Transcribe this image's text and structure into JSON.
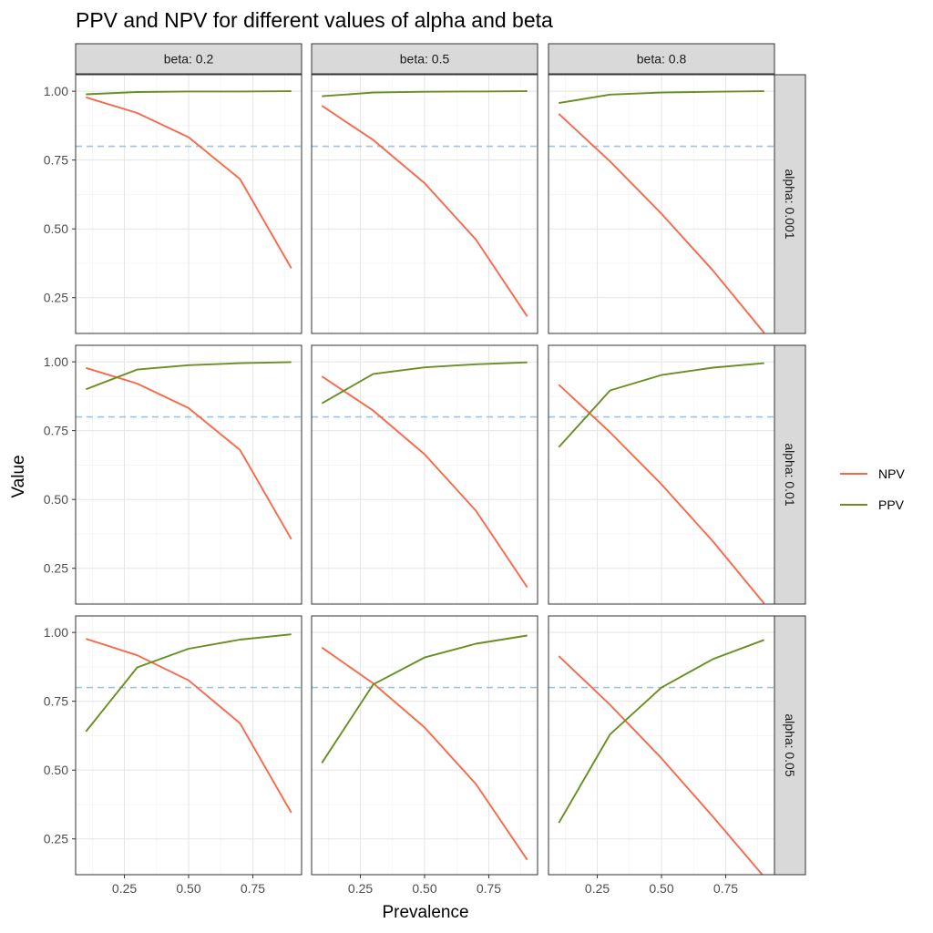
{
  "chart_data": {
    "type": "line",
    "title": "PPV and NPV for different values of alpha and beta",
    "xlabel": "Prevalence",
    "ylabel": "Value",
    "xlim": [
      0.06,
      0.94
    ],
    "ylim": [
      0.12,
      1.06
    ],
    "x_ticks": [
      0.25,
      0.5,
      0.75
    ],
    "x_tick_labels": [
      "0.25",
      "0.50",
      "0.75"
    ],
    "y_ticks": [
      0.25,
      0.5,
      0.75,
      1.0
    ],
    "y_tick_labels": [
      "0.25",
      "0.50",
      "0.75",
      "1.00"
    ],
    "grid": true,
    "legend": {
      "placement": "right",
      "entries": [
        {
          "label": "NPV",
          "color": "#f8694a"
        },
        {
          "label": "PPV",
          "color": "#6b8e23"
        }
      ]
    },
    "reference_line": {
      "y": 0.8,
      "color": "#9ec3e6",
      "style": "dashed"
    },
    "col_strips": [
      "beta: 0.2",
      "beta: 0.5",
      "beta: 0.8"
    ],
    "row_strips": [
      "alpha: 0.001",
      "alpha: 0.01",
      "alpha: 0.05"
    ],
    "x": [
      0.1,
      0.3,
      0.5,
      0.7,
      0.9
    ],
    "panels": [
      {
        "row": 0,
        "col": 0,
        "series": [
          {
            "name": "NPV",
            "values": [
              0.978,
              0.921,
              0.833,
              0.681,
              0.357
            ]
          },
          {
            "name": "PPV",
            "values": [
              0.989,
              0.997,
              0.999,
              0.999,
              1.0
            ]
          }
        ]
      },
      {
        "row": 0,
        "col": 1,
        "series": [
          {
            "name": "NPV",
            "values": [
              0.947,
              0.823,
              0.666,
              0.461,
              0.182
            ]
          },
          {
            "name": "PPV",
            "values": [
              0.982,
              0.995,
              0.998,
              0.999,
              1.0
            ]
          }
        ]
      },
      {
        "row": 0,
        "col": 2,
        "series": [
          {
            "name": "NPV",
            "values": [
              0.918,
              0.745,
              0.555,
              0.349,
              0.122
            ]
          },
          {
            "name": "PPV",
            "values": [
              0.957,
              0.988,
              0.995,
              0.998,
              1.0
            ]
          }
        ]
      },
      {
        "row": 1,
        "col": 0,
        "series": [
          {
            "name": "NPV",
            "values": [
              0.978,
              0.921,
              0.832,
              0.68,
              0.356
            ]
          },
          {
            "name": "PPV",
            "values": [
              0.9,
              0.972,
              0.988,
              0.995,
              0.999
            ]
          }
        ]
      },
      {
        "row": 1,
        "col": 1,
        "series": [
          {
            "name": "NPV",
            "values": [
              0.947,
              0.823,
              0.664,
              0.459,
              0.181
            ]
          },
          {
            "name": "PPV",
            "values": [
              0.849,
              0.956,
              0.98,
              0.991,
              0.998
            ]
          }
        ]
      },
      {
        "row": 1,
        "col": 2,
        "series": [
          {
            "name": "NPV",
            "values": [
              0.917,
              0.744,
              0.555,
              0.348,
              0.122
            ]
          },
          {
            "name": "PPV",
            "values": [
              0.69,
              0.896,
              0.952,
              0.979,
              0.995
            ]
          }
        ]
      },
      {
        "row": 2,
        "col": 0,
        "series": [
          {
            "name": "NPV",
            "values": [
              0.977,
              0.917,
              0.826,
              0.67,
              0.345
            ]
          },
          {
            "name": "PPV",
            "values": [
              0.64,
              0.873,
              0.941,
              0.974,
              0.993
            ]
          }
        ]
      },
      {
        "row": 2,
        "col": 1,
        "series": [
          {
            "name": "NPV",
            "values": [
              0.945,
              0.815,
              0.655,
              0.449,
              0.174
            ]
          },
          {
            "name": "PPV",
            "values": [
              0.526,
              0.811,
              0.909,
              0.959,
              0.989
            ]
          }
        ]
      },
      {
        "row": 2,
        "col": 2,
        "series": [
          {
            "name": "NPV",
            "values": [
              0.914,
              0.737,
              0.543,
              0.331,
              0.112
            ]
          },
          {
            "name": "PPV",
            "values": [
              0.308,
              0.63,
              0.8,
              0.903,
              0.973
            ]
          }
        ]
      }
    ]
  }
}
